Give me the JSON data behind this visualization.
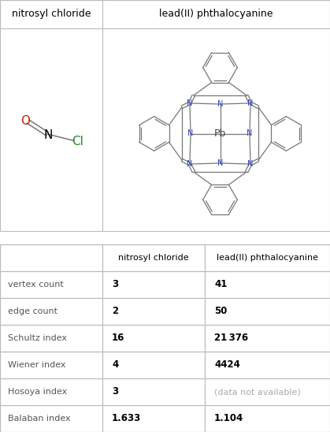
{
  "title_row": [
    "",
    "nitrosyl chloride",
    "lead(II) phthalocyanine"
  ],
  "rows": [
    {
      "label": "vertex count",
      "col1": "3",
      "col2": "41",
      "col2_style": "bold"
    },
    {
      "label": "edge count",
      "col1": "2",
      "col2": "50",
      "col2_style": "bold"
    },
    {
      "label": "Schultz index",
      "col1": "16",
      "col2": "21 376",
      "col2_style": "bold"
    },
    {
      "label": "Wiener index",
      "col1": "4",
      "col2": "4424",
      "col2_style": "bold"
    },
    {
      "label": "Hosoya index",
      "col1": "3",
      "col2": "(data not available)",
      "col2_style": "gray"
    },
    {
      "label": "Balaban index",
      "col1": "1.633",
      "col2": "1.104",
      "col2_style": "bold"
    }
  ],
  "background_color": "#ffffff",
  "border_color": "#bbbbbb",
  "text_color": "#000000",
  "gray_color": "#aaaaaa",
  "bond_color": "#777777",
  "n_color": "#3344cc",
  "o_color": "#cc2200",
  "cl_color": "#228822",
  "pb_color": "#444444"
}
